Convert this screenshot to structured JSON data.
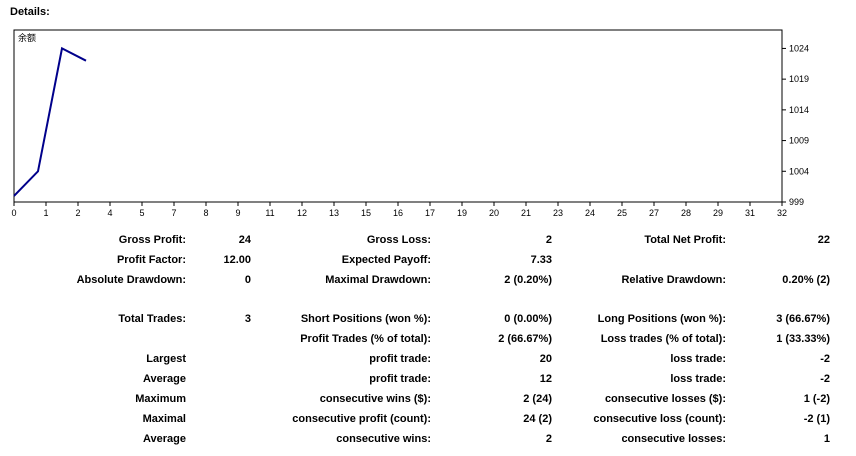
{
  "details": {
    "title": "Details:"
  },
  "chart_data": {
    "type": "line",
    "legend_label": "余额",
    "color": "#00008b",
    "x": [
      0,
      1,
      2,
      3
    ],
    "values": [
      1000,
      1004,
      1024,
      1022
    ],
    "x_ticks": [
      "0",
      "1",
      "2",
      "4",
      "5",
      "7",
      "8",
      "9",
      "11",
      "12",
      "13",
      "15",
      "16",
      "17",
      "19",
      "20",
      "21",
      "23",
      "24",
      "25",
      "27",
      "28",
      "29",
      "31",
      "32"
    ],
    "y_ticks": [
      "1024",
      "1019",
      "1014",
      "1009",
      "1004",
      "999"
    ],
    "xlim": [
      0,
      32
    ],
    "ylim": [
      999,
      1027
    ],
    "grid": false
  },
  "stats": {
    "gross_profit": {
      "label": "Gross Profit:",
      "value": "24"
    },
    "gross_loss": {
      "label": "Gross Loss:",
      "value": "2"
    },
    "total_net_profit": {
      "label": "Total Net Profit:",
      "value": "22"
    },
    "profit_factor": {
      "label": "Profit Factor:",
      "value": "12.00"
    },
    "expected_payoff": {
      "label": "Expected Payoff:",
      "value": "7.33"
    },
    "absolute_drawdown": {
      "label": "Absolute Drawdown:",
      "value": "0"
    },
    "maximal_drawdown": {
      "label": "Maximal Drawdown:",
      "value": "2 (0.20%)"
    },
    "relative_drawdown": {
      "label": "Relative Drawdown:",
      "value": "0.20% (2)"
    },
    "total_trades": {
      "label": "Total Trades:",
      "value": "3"
    },
    "short_positions": {
      "label": "Short Positions (won %):",
      "value": "0 (0.00%)"
    },
    "long_positions": {
      "label": "Long Positions (won %):",
      "value": "3 (66.67%)"
    },
    "profit_trades": {
      "label": "Profit Trades (% of total):",
      "value": "2 (66.67%)"
    },
    "loss_trades": {
      "label": "Loss trades (% of total):",
      "value": "1 (33.33%)"
    },
    "largest": {
      "label": "Largest",
      "profit_label": "profit trade:",
      "profit_value": "20",
      "loss_label": "loss trade:",
      "loss_value": "-2"
    },
    "average": {
      "label": "Average",
      "profit_label": "profit trade:",
      "profit_value": "12",
      "loss_label": "loss trade:",
      "loss_value": "-2"
    },
    "maximum": {
      "label": "Maximum",
      "profit_label": "consecutive wins ($):",
      "profit_value": "2 (24)",
      "loss_label": "consecutive losses ($):",
      "loss_value": "1 (-2)"
    },
    "maximal": {
      "label": "Maximal",
      "profit_label": "consecutive profit (count):",
      "profit_value": "24 (2)",
      "loss_label": "consecutive loss (count):",
      "loss_value": "-2 (1)"
    },
    "average2": {
      "label": "Average",
      "profit_label": "consecutive wins:",
      "profit_value": "2",
      "loss_label": "consecutive losses:",
      "loss_value": "1"
    }
  }
}
